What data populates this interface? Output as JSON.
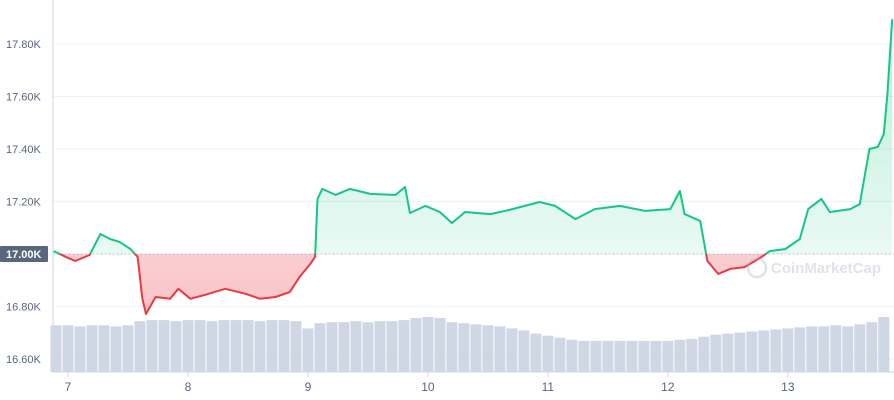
{
  "chart_data": {
    "type": "line",
    "x": [
      6.88,
      6.93,
      6.98,
      7.06,
      7.18,
      7.27,
      7.35,
      7.43,
      7.52,
      7.58,
      7.62,
      7.65,
      7.73,
      7.85,
      7.92,
      8.02,
      8.14,
      8.31,
      8.48,
      8.6,
      8.73,
      8.85,
      8.93,
      9.02,
      9.06,
      9.08,
      9.12,
      9.23,
      9.35,
      9.52,
      9.73,
      9.81,
      9.85,
      9.98,
      10.1,
      10.2,
      10.31,
      10.52,
      10.68,
      10.93,
      11.06,
      11.23,
      11.39,
      11.6,
      11.81,
      12.02,
      12.1,
      12.14,
      12.27,
      12.33,
      12.42,
      12.52,
      12.64,
      12.77,
      12.85,
      12.98,
      13.1,
      13.17,
      13.28,
      13.35,
      13.52,
      13.6,
      13.68,
      13.75,
      13.8,
      13.83,
      13.87
    ],
    "values": [
      17011,
      17000,
      16989,
      16973,
      16996,
      17076,
      17057,
      17046,
      17019,
      16989,
      16829,
      16771,
      16836,
      16829,
      16867,
      16829,
      16844,
      16867,
      16848,
      16829,
      16836,
      16855,
      16912,
      16962,
      16989,
      17210,
      17248,
      17225,
      17248,
      17229,
      17225,
      17255,
      17156,
      17183,
      17160,
      17118,
      17160,
      17152,
      17168,
      17198,
      17183,
      17133,
      17171,
      17183,
      17164,
      17171,
      17240,
      17152,
      17126,
      16973,
      16924,
      16943,
      16950,
      16985,
      17011,
      17019,
      17057,
      17171,
      17210,
      17160,
      17171,
      17190,
      17400,
      17408,
      17457,
      17610,
      17895
    ],
    "baseline": 17000,
    "colors": {
      "up": "#16c784",
      "down": "#ea3943"
    },
    "volume": {
      "color": "#cfd6e4",
      "x": [
        6.9,
        7.0,
        7.1,
        7.2,
        7.3,
        7.4,
        7.5,
        7.6,
        7.7,
        7.8,
        7.9,
        8.0,
        8.1,
        8.2,
        8.3,
        8.4,
        8.5,
        8.6,
        8.7,
        8.8,
        8.9,
        9.0,
        9.1,
        9.2,
        9.3,
        9.4,
        9.5,
        9.6,
        9.7,
        9.8,
        9.9,
        10.0,
        10.1,
        10.2,
        10.3,
        10.4,
        10.5,
        10.6,
        10.7,
        10.8,
        10.9,
        11.0,
        11.1,
        11.2,
        11.3,
        11.4,
        11.5,
        11.6,
        11.7,
        11.8,
        11.9,
        12.0,
        12.1,
        12.2,
        12.3,
        12.4,
        12.5,
        12.6,
        12.7,
        12.8,
        12.9,
        13.0,
        13.1,
        13.2,
        13.3,
        13.4,
        13.5,
        13.6,
        13.7,
        13.8
      ],
      "values": [
        45,
        45,
        44,
        45,
        45,
        44,
        45,
        49,
        50,
        50,
        49,
        50,
        50,
        49,
        50,
        50,
        50,
        49,
        50,
        50,
        49,
        42,
        47,
        48,
        48,
        49,
        48,
        49,
        49,
        50,
        52,
        53,
        52,
        48,
        47,
        46,
        45,
        44,
        42,
        40,
        37,
        35,
        33,
        31,
        30,
        30,
        30,
        30,
        30,
        30,
        30,
        30,
        31,
        32,
        34,
        36,
        37,
        38,
        39,
        40,
        41,
        42,
        43,
        44,
        44,
        45,
        44,
        46,
        48,
        53
      ]
    },
    "xlim": [
      6.875,
      13.885
    ],
    "xticks": [
      7,
      8,
      9,
      10,
      11,
      12,
      13
    ],
    "ylim": [
      16550,
      17968
    ],
    "yticks": [
      {
        "value": 16600,
        "label": "16.60K"
      },
      {
        "value": 16800,
        "label": "16.80K"
      },
      {
        "value": 17000,
        "label": "17.00K"
      },
      {
        "value": 17200,
        "label": "17.20K"
      },
      {
        "value": 17400,
        "label": "17.40K"
      },
      {
        "value": 17600,
        "label": "17.60K"
      },
      {
        "value": 17800,
        "label": "17.80K"
      }
    ],
    "grid": true,
    "watermark": "CoinMarketCap"
  }
}
